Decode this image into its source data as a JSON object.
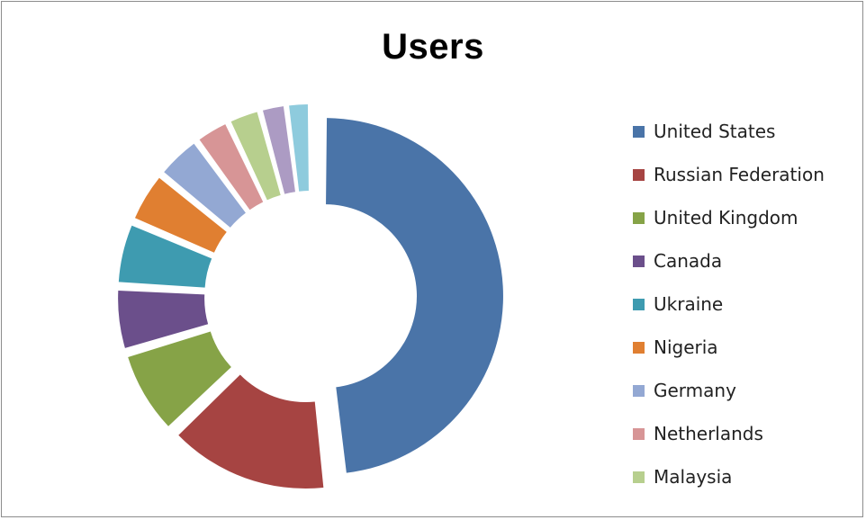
{
  "chart_data": {
    "type": "pie",
    "subtype": "exploded-doughnut",
    "title": "Users",
    "categories": [
      "United States",
      "Russian Federation",
      "United Kingdom",
      "Canada",
      "Ukraine",
      "Nigeria",
      "Germany",
      "Netherlands",
      "Malaysia",
      "",
      ""
    ],
    "values": [
      48.0,
      14.5,
      7.5,
      5.5,
      5.5,
      4.5,
      4.0,
      3.0,
      2.8,
      2.2,
      2.0
    ],
    "colors": [
      "#4a74a8",
      "#a64442",
      "#86a347",
      "#6b4f8b",
      "#3e9bb0",
      "#e07f31",
      "#93a8d3",
      "#d79596",
      "#b7cf8e",
      "#ac9bc3",
      "#8ecbdd"
    ],
    "legend": {
      "position": "right",
      "entries": [
        "United States",
        "Russian Federation",
        "United Kingdom",
        "Canada",
        "Ukraine",
        "Nigeria",
        "Germany",
        "Netherlands",
        "Malaysia"
      ]
    }
  }
}
